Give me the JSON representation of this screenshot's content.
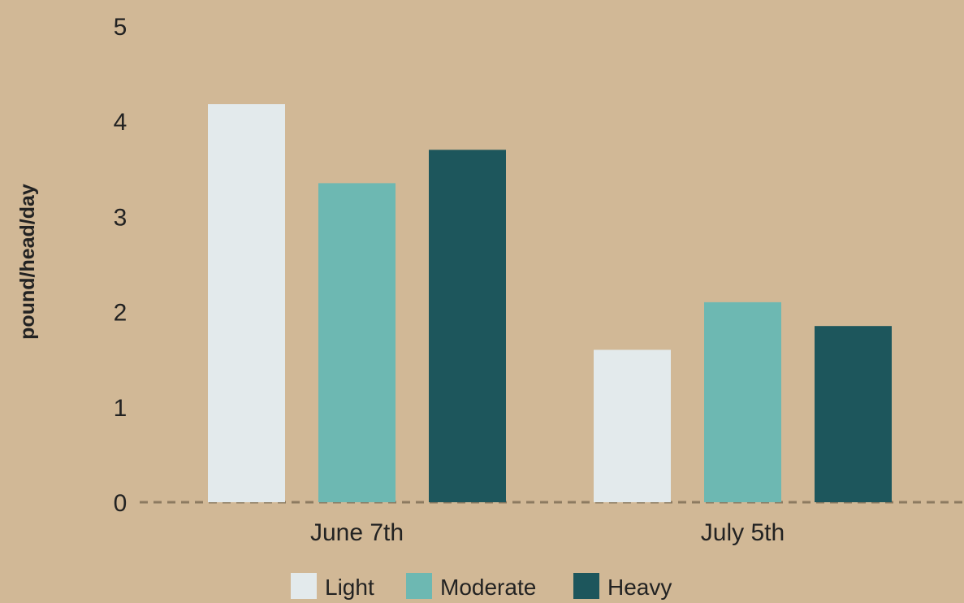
{
  "chart_data": {
    "type": "bar",
    "title": "",
    "xlabel": "",
    "ylabel": "pound/head/day",
    "ylim": [
      0,
      5
    ],
    "yticks": [
      0,
      1,
      2,
      3,
      4,
      5
    ],
    "categories": [
      "June 7th",
      "July 5th"
    ],
    "series": [
      {
        "name": "Light",
        "values": [
          4.18,
          1.6
        ],
        "color": "#e3eaec"
      },
      {
        "name": "Moderate",
        "values": [
          3.35,
          2.1
        ],
        "color": "#6db8b2"
      },
      {
        "name": "Heavy",
        "values": [
          3.7,
          1.85
        ],
        "color": "#1d565c"
      }
    ],
    "grid": false,
    "zero_line": "dashed",
    "legend": {
      "position": "bottom-center"
    },
    "colors": {
      "background": "#d1b896",
      "zero_line": "#8c7a60",
      "text": "#222222"
    }
  }
}
